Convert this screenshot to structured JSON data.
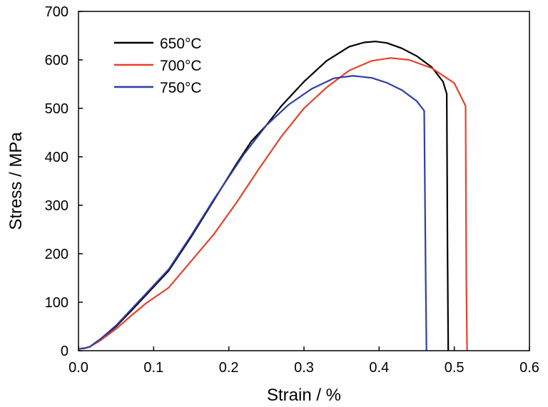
{
  "chart_data": {
    "type": "line",
    "xlabel": "Strain / %",
    "ylabel": "Stress / MPa",
    "xlim": [
      0.0,
      0.6
    ],
    "ylim": [
      0,
      700
    ],
    "xticks": [
      "0.0",
      "0.1",
      "0.2",
      "0.3",
      "0.4",
      "0.5",
      "0.6"
    ],
    "yticks": [
      "0",
      "100",
      "200",
      "300",
      "400",
      "500",
      "600",
      "700"
    ],
    "grid": false,
    "legend_position": "top-left",
    "series": [
      {
        "name": "650°C",
        "color": "#000000",
        "x": [
          0.0,
          0.008,
          0.015,
          0.03,
          0.05,
          0.07,
          0.09,
          0.12,
          0.15,
          0.18,
          0.21,
          0.23,
          0.25,
          0.27,
          0.3,
          0.33,
          0.36,
          0.38,
          0.395,
          0.41,
          0.43,
          0.45,
          0.47,
          0.485,
          0.49,
          0.491,
          0.492
        ],
        "y": [
          4,
          5,
          8,
          25,
          50,
          82,
          115,
          165,
          235,
          310,
          385,
          432,
          465,
          505,
          555,
          598,
          627,
          636,
          638,
          635,
          624,
          608,
          585,
          555,
          530,
          200,
          0
        ]
      },
      {
        "name": "700°C",
        "color": "#e8402a",
        "x": [
          0.0,
          0.008,
          0.015,
          0.03,
          0.05,
          0.07,
          0.09,
          0.12,
          0.15,
          0.18,
          0.21,
          0.24,
          0.27,
          0.3,
          0.33,
          0.36,
          0.39,
          0.415,
          0.44,
          0.47,
          0.5,
          0.515,
          0.516,
          0.517
        ],
        "y": [
          4,
          5,
          8,
          22,
          45,
          72,
          98,
          130,
          185,
          240,
          305,
          375,
          442,
          500,
          543,
          578,
          598,
          604,
          600,
          583,
          552,
          505,
          150,
          0
        ]
      },
      {
        "name": "750°C",
        "color": "#2f3ea3",
        "x": [
          0.0,
          0.008,
          0.015,
          0.03,
          0.05,
          0.07,
          0.09,
          0.12,
          0.15,
          0.18,
          0.22,
          0.25,
          0.28,
          0.31,
          0.34,
          0.365,
          0.39,
          0.41,
          0.43,
          0.45,
          0.46,
          0.462,
          0.463
        ],
        "y": [
          4,
          5,
          8,
          25,
          52,
          85,
          118,
          168,
          238,
          312,
          405,
          465,
          508,
          540,
          562,
          567,
          563,
          553,
          538,
          515,
          495,
          150,
          0
        ]
      }
    ]
  }
}
